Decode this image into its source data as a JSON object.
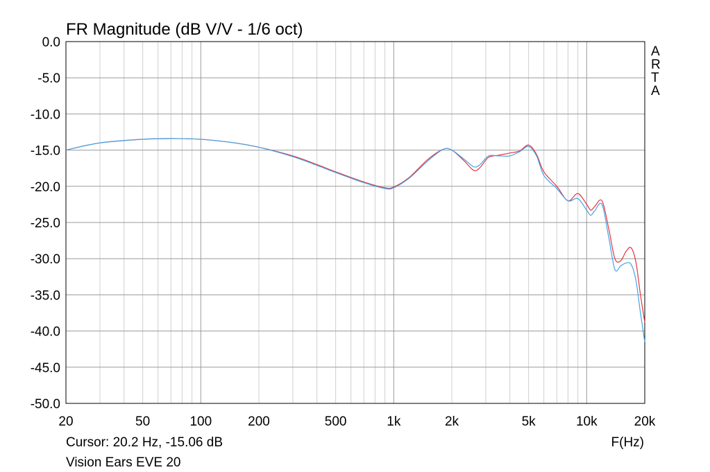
{
  "chart_data": {
    "type": "line",
    "title": "FR Magnitude (dB V/V - 1/6 oct)",
    "xlabel": "F(Hz)",
    "ylabel": "",
    "x_scale": "log",
    "xlim": [
      20,
      20000
    ],
    "ylim": [
      -50,
      0
    ],
    "grid": true,
    "x_ticks": [
      "20",
      "50",
      "100",
      "200",
      "500",
      "1k",
      "2k",
      "5k",
      "10k",
      "20k"
    ],
    "x_tick_values": [
      20,
      50,
      100,
      200,
      500,
      1000,
      2000,
      5000,
      10000,
      20000
    ],
    "y_ticks": [
      "0.0",
      "-5.0",
      "-10.0",
      "-15.0",
      "-20.0",
      "-25.0",
      "-30.0",
      "-35.0",
      "-40.0",
      "-45.0",
      "-50.0"
    ],
    "y_tick_values": [
      0,
      -5,
      -10,
      -15,
      -20,
      -25,
      -30,
      -35,
      -40,
      -45,
      -50
    ],
    "series": [
      {
        "color": "#e8323c",
        "points": [
          [
            20,
            -15.0
          ],
          [
            30,
            -14.0
          ],
          [
            50,
            -13.5
          ],
          [
            70,
            -13.4
          ],
          [
            100,
            -13.5
          ],
          [
            150,
            -14.0
          ],
          [
            200,
            -14.6
          ],
          [
            300,
            -15.8
          ],
          [
            400,
            -17.0
          ],
          [
            500,
            -18.0
          ],
          [
            700,
            -19.4
          ],
          [
            900,
            -20.2
          ],
          [
            1000,
            -20.1
          ],
          [
            1200,
            -18.8
          ],
          [
            1500,
            -16.3
          ],
          [
            1800,
            -14.9
          ],
          [
            2000,
            -15.0
          ],
          [
            2300,
            -16.4
          ],
          [
            2600,
            -17.8
          ],
          [
            2800,
            -17.4
          ],
          [
            3100,
            -16.0
          ],
          [
            3500,
            -15.7
          ],
          [
            4000,
            -15.4
          ],
          [
            4500,
            -15.1
          ],
          [
            5000,
            -14.3
          ],
          [
            5500,
            -15.6
          ],
          [
            6000,
            -18.0
          ],
          [
            7000,
            -20.0
          ],
          [
            8000,
            -22.0
          ],
          [
            9000,
            -21.0
          ],
          [
            10000,
            -22.5
          ],
          [
            10500,
            -23.3
          ],
          [
            11000,
            -22.8
          ],
          [
            12000,
            -22.0
          ],
          [
            13000,
            -25.8
          ],
          [
            14000,
            -30.0
          ],
          [
            15000,
            -30.3
          ],
          [
            16000,
            -29.0
          ],
          [
            17000,
            -28.5
          ],
          [
            18000,
            -30.5
          ],
          [
            19000,
            -35.0
          ],
          [
            20000,
            -38.8
          ]
        ]
      },
      {
        "color": "#3fa4e8",
        "points": [
          [
            20,
            -15.0
          ],
          [
            30,
            -14.0
          ],
          [
            50,
            -13.5
          ],
          [
            70,
            -13.4
          ],
          [
            100,
            -13.5
          ],
          [
            150,
            -14.0
          ],
          [
            200,
            -14.6
          ],
          [
            300,
            -15.9
          ],
          [
            400,
            -17.1
          ],
          [
            500,
            -18.1
          ],
          [
            700,
            -19.5
          ],
          [
            900,
            -20.3
          ],
          [
            1000,
            -20.2
          ],
          [
            1200,
            -18.9
          ],
          [
            1500,
            -16.5
          ],
          [
            1800,
            -14.9
          ],
          [
            2000,
            -15.0
          ],
          [
            2300,
            -16.2
          ],
          [
            2600,
            -17.3
          ],
          [
            2800,
            -17.0
          ],
          [
            3100,
            -15.8
          ],
          [
            3500,
            -15.8
          ],
          [
            4000,
            -15.8
          ],
          [
            4500,
            -15.2
          ],
          [
            5000,
            -14.5
          ],
          [
            5500,
            -15.8
          ],
          [
            6000,
            -18.5
          ],
          [
            7000,
            -20.3
          ],
          [
            8000,
            -22.0
          ],
          [
            9000,
            -21.7
          ],
          [
            10000,
            -23.3
          ],
          [
            10500,
            -24.0
          ],
          [
            11000,
            -23.4
          ],
          [
            12000,
            -22.5
          ],
          [
            13000,
            -27.0
          ],
          [
            14000,
            -31.5
          ],
          [
            15000,
            -31.0
          ],
          [
            16000,
            -30.6
          ],
          [
            17000,
            -30.8
          ],
          [
            18000,
            -33.0
          ],
          [
            19000,
            -37.5
          ],
          [
            20000,
            -41.5
          ]
        ]
      }
    ]
  },
  "watermark": "ARTA",
  "cursor_readout": "Cursor: 20.2 Hz, -15.06 dB",
  "device_name": "Vision Ears EVE 20"
}
